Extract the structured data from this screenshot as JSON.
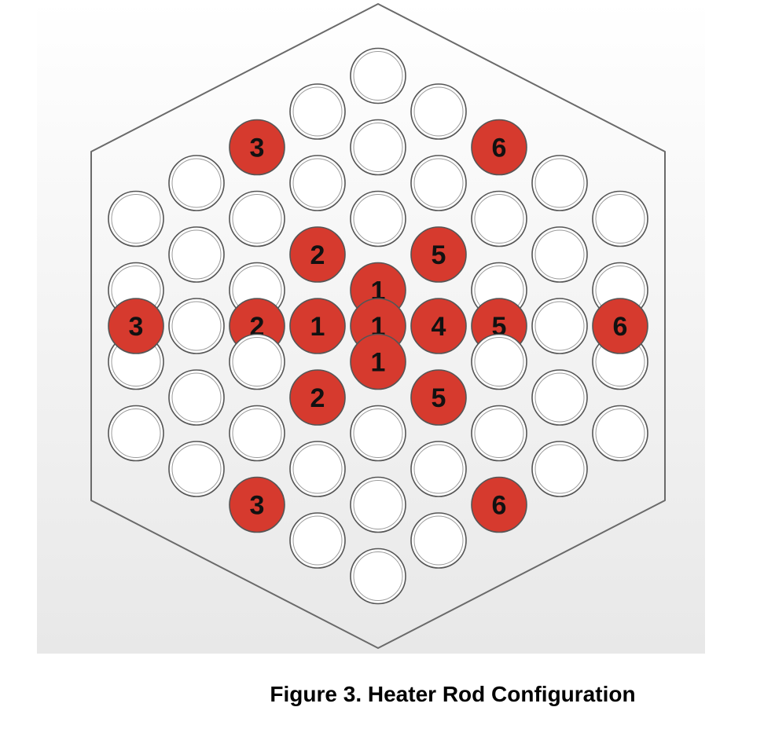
{
  "caption": "Figure 3. Heater Rod Configuration",
  "colors": {
    "heated_rod": "#d63a2e",
    "unheated_rod": "#ffffff",
    "rod_outline": "#555555",
    "housing_outline": "#6a6a6a",
    "background_top": "#ffffff",
    "background_bottom": "#e8e8e8",
    "label_text": "#111111"
  },
  "bundle": {
    "shape": "hexagon",
    "columns": [
      {
        "col": -4,
        "rods": [
          {
            "row": -3
          },
          {
            "row": -1
          },
          {
            "row": 1
          },
          {
            "row": 3
          },
          {
            "row": 0,
            "label": "3"
          }
        ]
      },
      {
        "col": -3,
        "rods": [
          {
            "row": -4
          },
          {
            "row": -2
          },
          {
            "row": 0
          },
          {
            "row": 2
          },
          {
            "row": 4
          }
        ]
      },
      {
        "col": -2,
        "rods": [
          {
            "row": -5,
            "label": "3"
          },
          {
            "row": -3
          },
          {
            "row": -1
          },
          {
            "row": 0,
            "label": "2"
          },
          {
            "row": 1
          },
          {
            "row": 3
          },
          {
            "row": 5,
            "label": "3"
          }
        ]
      },
      {
        "col": -1,
        "rods": [
          {
            "row": -6
          },
          {
            "row": -4
          },
          {
            "row": -2,
            "label": "2"
          },
          {
            "row": 0,
            "label": "1"
          },
          {
            "row": 2,
            "label": "2"
          },
          {
            "row": 4
          },
          {
            "row": 6
          }
        ]
      },
      {
        "col": 0,
        "rods": [
          {
            "row": -7
          },
          {
            "row": -5
          },
          {
            "row": -3
          },
          {
            "row": -1,
            "label": "1"
          },
          {
            "row": 0,
            "label": "1"
          },
          {
            "row": 1,
            "label": "1"
          },
          {
            "row": 3
          },
          {
            "row": 5
          },
          {
            "row": 7
          }
        ]
      },
      {
        "col": 1,
        "rods": [
          {
            "row": -6
          },
          {
            "row": -4
          },
          {
            "row": -2,
            "label": "5"
          },
          {
            "row": 0,
            "label": "4"
          },
          {
            "row": 2,
            "label": "5"
          },
          {
            "row": 4
          },
          {
            "row": 6
          }
        ]
      },
      {
        "col": 2,
        "rods": [
          {
            "row": -5,
            "label": "6"
          },
          {
            "row": -3
          },
          {
            "row": -1
          },
          {
            "row": 0,
            "label": "5"
          },
          {
            "row": 1
          },
          {
            "row": 3
          },
          {
            "row": 5,
            "label": "6"
          }
        ]
      },
      {
        "col": 3,
        "rods": [
          {
            "row": -4
          },
          {
            "row": -2
          },
          {
            "row": 0
          },
          {
            "row": 2
          },
          {
            "row": 4
          }
        ]
      },
      {
        "col": 4,
        "rods": [
          {
            "row": -3
          },
          {
            "row": -1
          },
          {
            "row": 1
          },
          {
            "row": 3
          },
          {
            "row": 0,
            "label": "6"
          }
        ]
      }
    ]
  }
}
